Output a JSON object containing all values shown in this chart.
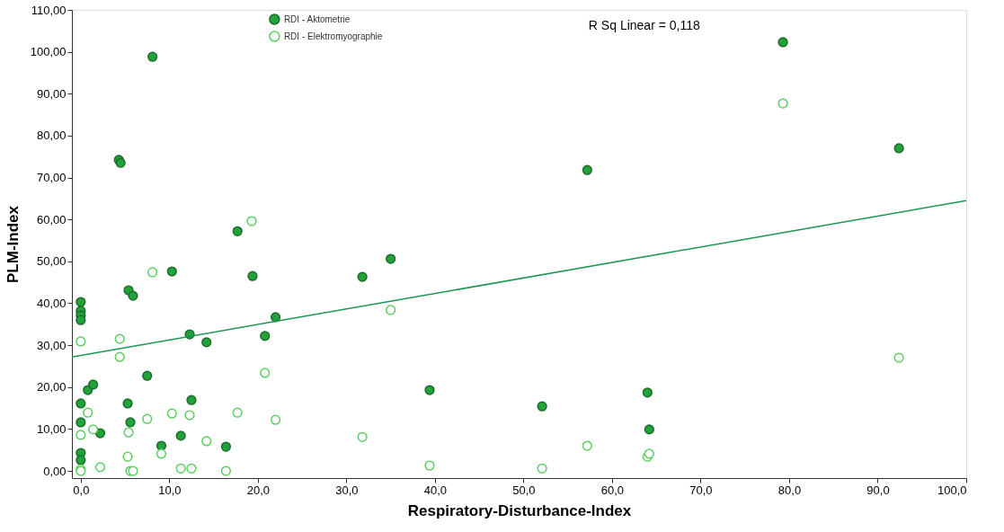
{
  "chart_data": {
    "type": "scatter",
    "xlabel": "Respiratory-Disturbance-Index",
    "ylabel": "PLM-Index",
    "xlim": [
      -1,
      100
    ],
    "ylim": [
      -1.7,
      110
    ],
    "xticks": [
      {
        "value": 0,
        "label": "0,0"
      },
      {
        "value": 10,
        "label": "10,0"
      },
      {
        "value": 20,
        "label": "20,0"
      },
      {
        "value": 30,
        "label": "30,0"
      },
      {
        "value": 40,
        "label": "40,0"
      },
      {
        "value": 50,
        "label": "50,0"
      },
      {
        "value": 60,
        "label": "60,0"
      },
      {
        "value": 70,
        "label": "70,0"
      },
      {
        "value": 80,
        "label": "80,0"
      },
      {
        "value": 90,
        "label": "90,0"
      },
      {
        "value": 100,
        "label": "100,0"
      }
    ],
    "yticks": [
      {
        "value": 0,
        "label": "0,00"
      },
      {
        "value": 10,
        "label": "10,00"
      },
      {
        "value": 20,
        "label": "20,00"
      },
      {
        "value": 30,
        "label": "30,00"
      },
      {
        "value": 40,
        "label": "40,00"
      },
      {
        "value": 50,
        "label": "50,00"
      },
      {
        "value": 60,
        "label": "60,00"
      },
      {
        "value": 70,
        "label": "70,00"
      },
      {
        "value": 80,
        "label": "80,00"
      },
      {
        "value": 90,
        "label": "90,00"
      },
      {
        "value": 100,
        "label": "100,00"
      },
      {
        "value": 110,
        "label": "110,00"
      }
    ],
    "marker": "circle",
    "legend": "top",
    "grid": false,
    "annotations": [
      "R Sq Linear = 0,118"
    ],
    "series": [
      {
        "name": "RDI - Aktometrie",
        "color": "#22a33a",
        "x": [
          0,
          0,
          0,
          0,
          0,
          0,
          0,
          0,
          0.8,
          1.4,
          2.2,
          4.3,
          4.5,
          8.1,
          5.4,
          5.9,
          5.3,
          5.6,
          7.5,
          9.1,
          10.3,
          11.3,
          12.3,
          12.5,
          14.2,
          16.4,
          17.7,
          19.4,
          20.8,
          22.0,
          31.8,
          35.0,
          39.4,
          52.1,
          57.2,
          64.0,
          64.2,
          79.3,
          92.4
        ],
        "values": [
          40.3,
          38.2,
          37.1,
          36.0,
          16.1,
          11.6,
          4.3,
          2.6,
          19.3,
          20.6,
          9.0,
          74.2,
          73.5,
          98.8,
          43.1,
          41.8,
          16.1,
          11.6,
          22.7,
          6.0,
          47.6,
          8.4,
          32.6,
          16.9,
          30.7,
          5.8,
          57.2,
          46.5,
          32.2,
          36.7,
          46.3,
          50.6,
          19.3,
          15.4,
          71.8,
          18.7,
          9.9,
          102.3,
          77.0
        ]
      },
      {
        "name": "RDI - Elektromyographie",
        "color": "#5ccf5f",
        "x": [
          0,
          0,
          0,
          0,
          0.8,
          1.4,
          2.2,
          4.4,
          4.4,
          5.3,
          5.4,
          5.6,
          5.9,
          7.5,
          8.1,
          9.1,
          10.3,
          11.3,
          12.3,
          12.5,
          14.2,
          16.4,
          17.7,
          19.3,
          20.8,
          22.0,
          31.8,
          35.0,
          39.4,
          52.1,
          57.2,
          64.0,
          64.2,
          79.3,
          92.4
        ],
        "values": [
          30.9,
          8.6,
          0.4,
          0,
          13.9,
          9.9,
          0.9,
          27.2,
          31.5,
          3.4,
          9.2,
          0,
          0,
          12.4,
          47.4,
          4.1,
          13.7,
          0.6,
          13.3,
          0.6,
          7.1,
          0,
          13.9,
          59.6,
          23.4,
          12.2,
          8.1,
          38.4,
          1.3,
          0.6,
          6.0,
          3.4,
          4.1,
          87.7,
          27.0
        ]
      },
      {
        "type": "line",
        "marker": "none",
        "color": "#1a9650",
        "x": [
          -1,
          100
        ],
        "values": [
          27.2,
          64.5
        ]
      }
    ]
  }
}
